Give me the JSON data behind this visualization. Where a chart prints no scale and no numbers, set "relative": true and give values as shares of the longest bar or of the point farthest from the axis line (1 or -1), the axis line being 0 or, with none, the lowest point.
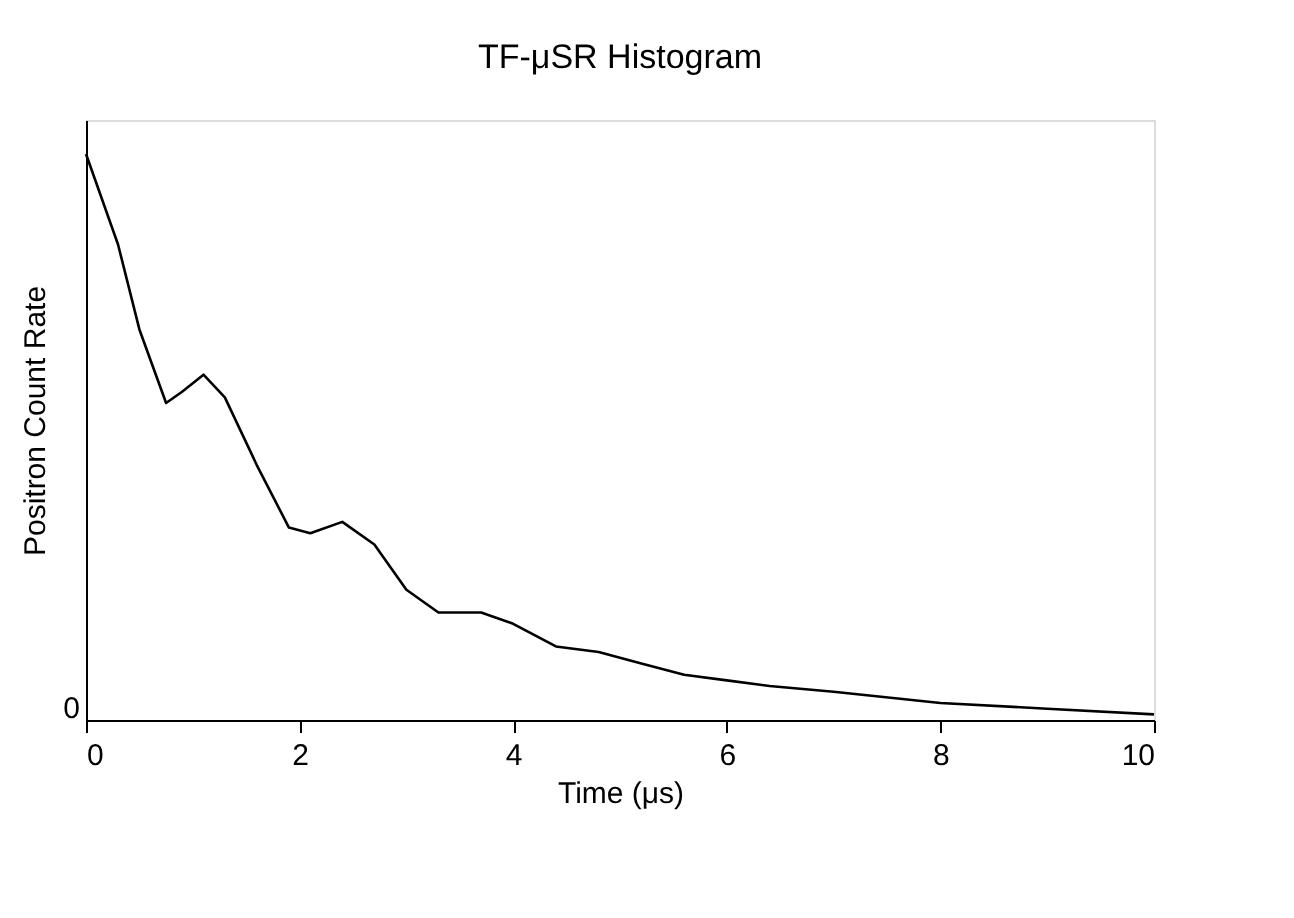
{
  "chart_data": {
    "type": "line",
    "title": "TF-μSR Histogram",
    "xlabel": "Time (μs)",
    "ylabel": "Positron Count Rate",
    "relative": true,
    "xlim": [
      0,
      10
    ],
    "xticks": [
      0,
      2,
      4,
      6,
      8,
      10
    ],
    "annotations": [
      "0"
    ],
    "grid": false,
    "legend": false,
    "line_style": "solid",
    "marker": "none",
    "series": [
      {
        "color": "#000000",
        "x": [
          0,
          0.3,
          0.5,
          0.75,
          0.9,
          1.1,
          1.3,
          1.6,
          1.9,
          2.1,
          2.4,
          2.7,
          3.0,
          3.3,
          3.7,
          4.0,
          4.4,
          4.8,
          5.2,
          5.6,
          6.0,
          6.4,
          7,
          8,
          9,
          10
        ],
        "values": [
          1.0,
          0.84,
          0.69,
          0.56,
          0.58,
          0.61,
          0.57,
          0.45,
          0.34,
          0.33,
          0.35,
          0.31,
          0.23,
          0.19,
          0.19,
          0.17,
          0.13,
          0.12,
          0.1,
          0.08,
          0.07,
          0.06,
          0.05,
          0.03,
          0.02,
          0.01
        ]
      }
    ]
  }
}
